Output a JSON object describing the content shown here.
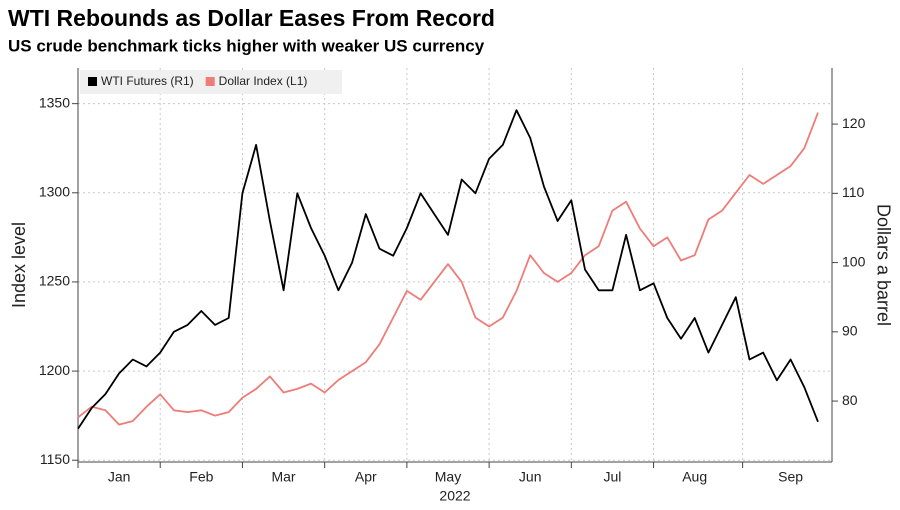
{
  "chart_data": {
    "type": "line",
    "title": "WTI Rebounds as Dollar Eases From Record",
    "subtitle": "US crude benchmark ticks higher with weaker US currency",
    "y_label": "Index level",
    "y2_label": "Dollars a barrel",
    "x_label": "2022",
    "categories": [
      null,
      null,
      null,
      "Jan",
      null,
      null,
      null,
      null,
      null,
      "Feb",
      null,
      null,
      null,
      null,
      null,
      "Mar",
      null,
      null,
      null,
      null,
      null,
      "Apr",
      null,
      null,
      null,
      null,
      null,
      "May",
      null,
      null,
      null,
      null,
      null,
      "Jun",
      null,
      null,
      null,
      null,
      null,
      "Jul",
      null,
      null,
      null,
      null,
      null,
      "Aug",
      null,
      null,
      null,
      null,
      null,
      null,
      "Sep",
      null,
      null
    ],
    "series": [
      {
        "name": "WTI Futures (R1)",
        "color": "#000000",
        "axis": "y2",
        "values": [
          76,
          79,
          81,
          84,
          86,
          85,
          87,
          90,
          91,
          93,
          91,
          92,
          110,
          117,
          106,
          96,
          110,
          105,
          101,
          96,
          100,
          107,
          102,
          101,
          105,
          110,
          107,
          104,
          112,
          110,
          115,
          117,
          122,
          118,
          111,
          106,
          109,
          99,
          96,
          96,
          104,
          96,
          97,
          92,
          89,
          92,
          87,
          91,
          95,
          86,
          87,
          83,
          86,
          82,
          77
        ]
      },
      {
        "name": "Dollar Index (L1)",
        "color": "#ee7c78",
        "values": [
          1174,
          1180,
          1178,
          1170,
          1172,
          1180,
          1187,
          1178,
          1177,
          1178,
          1175,
          1177,
          1185,
          1190,
          1197,
          1188,
          1190,
          1193,
          1188,
          1195,
          1200,
          1205,
          1215,
          1230,
          1245,
          1240,
          1250,
          1260,
          1250,
          1230,
          1225,
          1230,
          1245,
          1265,
          1255,
          1250,
          1255,
          1265,
          1270,
          1290,
          1295,
          1280,
          1270,
          1275,
          1262,
          1265,
          1285,
          1290,
          1300,
          1310,
          1305,
          1310,
          1315,
          1325,
          1345
        ]
      }
    ],
    "ylim": [
      1149,
      1370
    ],
    "yticks": [
      1150,
      1200,
      1250,
      1300,
      1350
    ],
    "y2lim": [
      71.2,
      128.1
    ],
    "y2ticks": [
      80,
      90,
      100,
      110,
      120
    ],
    "grid": true
  }
}
